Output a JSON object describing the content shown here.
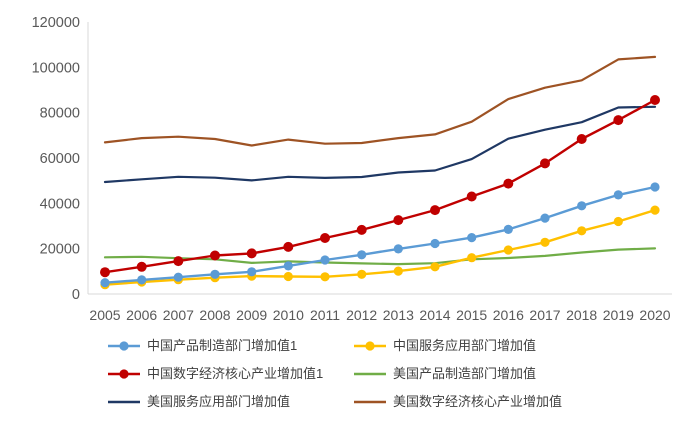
{
  "chart_data": {
    "type": "line",
    "title": "",
    "xlabel": "",
    "ylabel": "",
    "x": [
      2005,
      2006,
      2007,
      2008,
      2009,
      2010,
      2011,
      2012,
      2013,
      2014,
      2015,
      2016,
      2017,
      2018,
      2019,
      2020
    ],
    "ylim": [
      0,
      120000
    ],
    "ytick_step": 20000,
    "yticks": [
      0,
      20000,
      40000,
      60000,
      80000,
      100000,
      120000
    ],
    "grid": false,
    "legend_position": "bottom",
    "axis_color": "#D9D9D9",
    "tick_label_color": "#595959",
    "legend_text_color": "#404040",
    "series": [
      {
        "name": "中国产品制造部门增加值1",
        "color": "#5B9BD5",
        "marker": true,
        "values": [
          5000,
          6200,
          7400,
          8700,
          9800,
          12400,
          15000,
          17300,
          19900,
          22300,
          24900,
          28500,
          33500,
          38900,
          43700,
          47200
        ]
      },
      {
        "name": "中国服务应用部门增加值",
        "color": "#FFC000",
        "marker": true,
        "values": [
          4100,
          5300,
          6300,
          7200,
          7900,
          7700,
          7600,
          8700,
          10100,
          12000,
          16000,
          19400,
          22800,
          27900,
          32000,
          37000
        ]
      },
      {
        "name": "中国数字经济核心产业增加值1",
        "color": "#C00000",
        "marker": true,
        "values": [
          9600,
          12000,
          14500,
          17000,
          17900,
          20800,
          24700,
          28300,
          32600,
          37000,
          43000,
          48700,
          57600,
          68400,
          76700,
          85600
        ]
      },
      {
        "name": "美国产品制造部门增加值",
        "color": "#70AD47",
        "marker": false,
        "values": [
          16200,
          16400,
          15800,
          15300,
          13700,
          14400,
          13900,
          13500,
          13200,
          13600,
          15300,
          15900,
          16800,
          18300,
          19600,
          20100
        ]
      },
      {
        "name": "美国服务应用部门增加值",
        "color": "#1F3864",
        "marker": false,
        "values": [
          49400,
          50600,
          51700,
          51300,
          50100,
          51700,
          51200,
          51600,
          53600,
          54500,
          59500,
          68500,
          72500,
          75800,
          82300,
          82600
        ]
      },
      {
        "name": "美国数字经济核心产业增加值",
        "color": "#9E5324",
        "marker": false,
        "values": [
          66900,
          68800,
          69400,
          68400,
          65500,
          68100,
          66300,
          66600,
          68800,
          70400,
          76000,
          86000,
          91000,
          94300,
          103500,
          104600
        ]
      }
    ],
    "draw_order": [
      3,
      4,
      5,
      1,
      0,
      2
    ]
  }
}
